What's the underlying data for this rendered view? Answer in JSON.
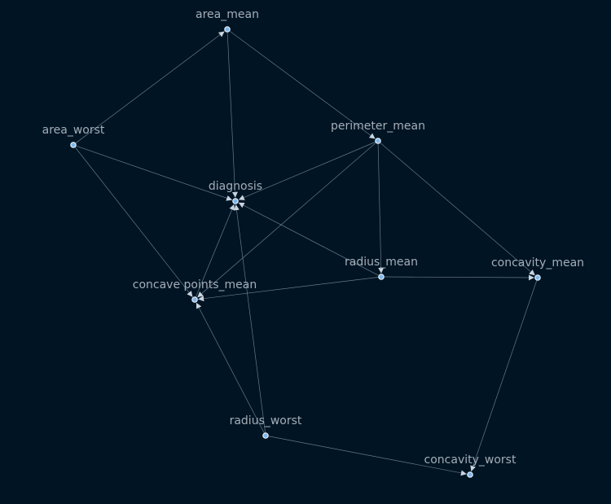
{
  "nodes": [
    {
      "id": "area_mean",
      "label": "area_mean"
    },
    {
      "id": "area_worst",
      "label": "area_worst"
    },
    {
      "id": "perimeter_mean",
      "label": "perimeter_mean"
    },
    {
      "id": "diagnosis",
      "label": "diagnosis"
    },
    {
      "id": "radius_mean",
      "label": "radius_mean"
    },
    {
      "id": "concavity_mean",
      "label": "concavity_mean"
    },
    {
      "id": "concave_points_mean",
      "label": "concave points_mean"
    },
    {
      "id": "radius_worst",
      "label": "radius_worst"
    },
    {
      "id": "concavity_worst",
      "label": "concavity_worst"
    }
  ],
  "edges": [
    {
      "from": "area_mean",
      "to": "diagnosis"
    },
    {
      "from": "area_mean",
      "to": "perimeter_mean"
    },
    {
      "from": "area_worst",
      "to": "area_mean"
    },
    {
      "from": "area_worst",
      "to": "diagnosis"
    },
    {
      "from": "area_worst",
      "to": "concave_points_mean"
    },
    {
      "from": "perimeter_mean",
      "to": "diagnosis"
    },
    {
      "from": "perimeter_mean",
      "to": "radius_mean"
    },
    {
      "from": "perimeter_mean",
      "to": "concavity_mean"
    },
    {
      "from": "perimeter_mean",
      "to": "concave_points_mean"
    },
    {
      "from": "radius_mean",
      "to": "diagnosis"
    },
    {
      "from": "radius_mean",
      "to": "concavity_mean"
    },
    {
      "from": "radius_mean",
      "to": "concave_points_mean"
    },
    {
      "from": "concave_points_mean",
      "to": "diagnosis"
    },
    {
      "from": "radius_worst",
      "to": "diagnosis"
    },
    {
      "from": "radius_worst",
      "to": "concave_points_mean"
    },
    {
      "from": "radius_worst",
      "to": "concavity_worst"
    },
    {
      "from": "concavity_mean",
      "to": "concavity_worst"
    }
  ]
}
